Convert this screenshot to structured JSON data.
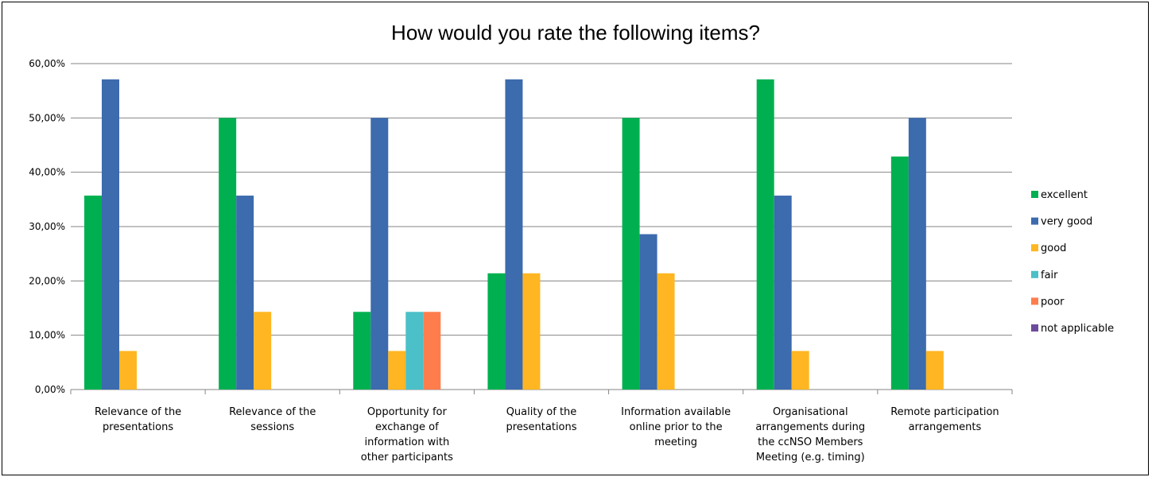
{
  "chart_data": {
    "type": "bar",
    "title": "How would you rate the following items?",
    "xlabel": "",
    "ylabel": "",
    "ylim": [
      0,
      0.6
    ],
    "yticks": [
      0,
      0.1,
      0.2,
      0.3,
      0.4,
      0.5,
      0.6
    ],
    "ytick_labels": [
      "0,00%",
      "10,00%",
      "20,00%",
      "30,00%",
      "40,00%",
      "50,00%",
      "60,00%"
    ],
    "grid": true,
    "legend_position": "right",
    "categories": [
      [
        "Relevance of the",
        "presentations"
      ],
      [
        "Relevance of the",
        "sessions"
      ],
      [
        "Opportunity for",
        "exchange of",
        "information with",
        "other participants"
      ],
      [
        "Quality of the",
        "presentations"
      ],
      [
        "Information available",
        "online prior to the",
        "meeting"
      ],
      [
        "Organisational",
        "arrangements during",
        "the ccNSO Members",
        "Meeting (e.g. timing)"
      ],
      [
        "Remote participation",
        "arrangements"
      ]
    ],
    "series": [
      {
        "name": "excellent",
        "color": "#00b050",
        "values": [
          0.357,
          0.5,
          0.143,
          0.214,
          0.5,
          0.571,
          0.429
        ]
      },
      {
        "name": "very good",
        "color": "#3c6bae",
        "values": [
          0.571,
          0.357,
          0.5,
          0.571,
          0.286,
          0.357,
          0.5
        ]
      },
      {
        "name": "good",
        "color": "#ffb622",
        "values": [
          0.071,
          0.143,
          0.071,
          0.214,
          0.214,
          0.071,
          0.071
        ]
      },
      {
        "name": "fair",
        "color": "#4bc0c8",
        "values": [
          0,
          0,
          0.143,
          0,
          0,
          0,
          0
        ]
      },
      {
        "name": "poor",
        "color": "#ff7d4d",
        "values": [
          0,
          0,
          0.143,
          0,
          0,
          0,
          0
        ]
      },
      {
        "name": "not applicable",
        "color": "#6b4c9a",
        "values": [
          0,
          0,
          0,
          0,
          0,
          0,
          0
        ]
      }
    ]
  }
}
